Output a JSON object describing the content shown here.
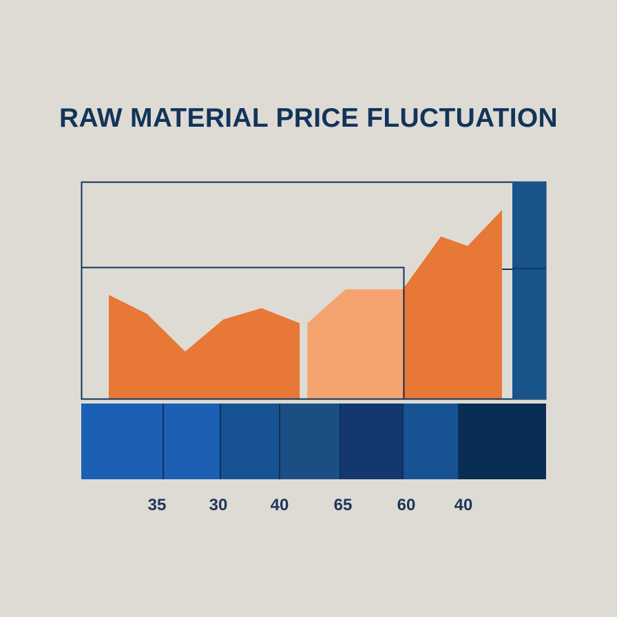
{
  "chart_data": {
    "type": "area",
    "title": "RAW MATERIAL PRICE FLUCTUATION",
    "xlabel": "",
    "ylabel": "",
    "tick_labels": [
      "35",
      "30",
      "40",
      "65",
      "60",
      "40"
    ],
    "series": [
      {
        "color": "#e77835",
        "points": [
          [
            0,
            55
          ],
          [
            1,
            45
          ],
          [
            2,
            25
          ],
          [
            3,
            42
          ],
          [
            4,
            48
          ],
          [
            5,
            40
          ]
        ]
      },
      {
        "color": "#f5a470",
        "points": [
          [
            5.2,
            40
          ],
          [
            6.2,
            58
          ],
          [
            7.7,
            58
          ]
        ]
      },
      {
        "color": "#e77835",
        "points": [
          [
            7.7,
            58
          ],
          [
            8.7,
            86
          ],
          [
            9.4,
            81
          ],
          [
            10.3,
            100
          ]
        ]
      }
    ],
    "x_range": [
      0,
      10.3
    ],
    "y_range": [
      0,
      100
    ],
    "grid": false,
    "legend": "none",
    "band_colors": [
      "#1b5fb5",
      "#1c5fb4",
      "#175394",
      "#1b4f83",
      "#13376f",
      "#175393",
      "#092e53"
    ],
    "frame_color": "#12325a",
    "side_bar_color": "#185489"
  }
}
